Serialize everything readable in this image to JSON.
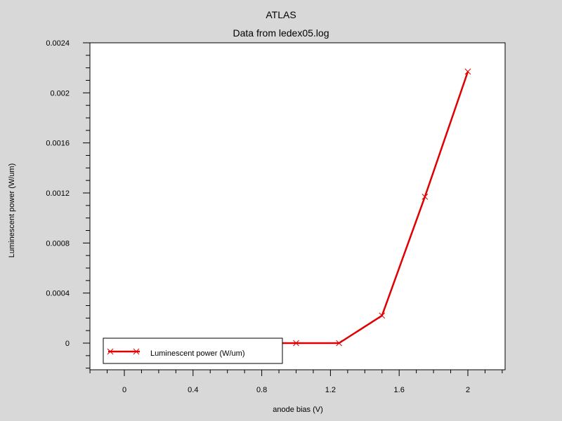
{
  "chart_data": {
    "type": "line",
    "title": "ATLAS",
    "subtitle": "Data from ledex05.log",
    "xlabel": "anode bias (V)",
    "ylabel": "Luminescent power (W/um)",
    "xlim": [
      -0.2,
      2.2
    ],
    "ylim": [
      -0.0002,
      0.0024
    ],
    "x_ticks": [
      0,
      0.4,
      0.8,
      1.2,
      1.6,
      2
    ],
    "x_tick_labels": [
      "0",
      "0.4",
      "0.8",
      "1.2",
      "1.6",
      "2"
    ],
    "y_ticks": [
      0,
      0.0004,
      0.0008,
      0.0012,
      0.0016,
      0.002,
      0.0024
    ],
    "y_tick_labels": [
      "0",
      "0.0004",
      "0.0008",
      "0.0012",
      "0.0016",
      "0.002",
      "0.0024"
    ],
    "grid": false,
    "legend_position": "bottom-left",
    "series": [
      {
        "name": "Luminescent power (W/um)",
        "color": "#e00000",
        "marker": "x",
        "x": [
          0,
          0.25,
          0.5,
          0.75,
          1.0,
          1.25,
          1.5,
          1.75,
          2.0
        ],
        "y": [
          0,
          0,
          0,
          0,
          0,
          0,
          0.00022,
          0.00117,
          0.00217
        ]
      }
    ]
  }
}
